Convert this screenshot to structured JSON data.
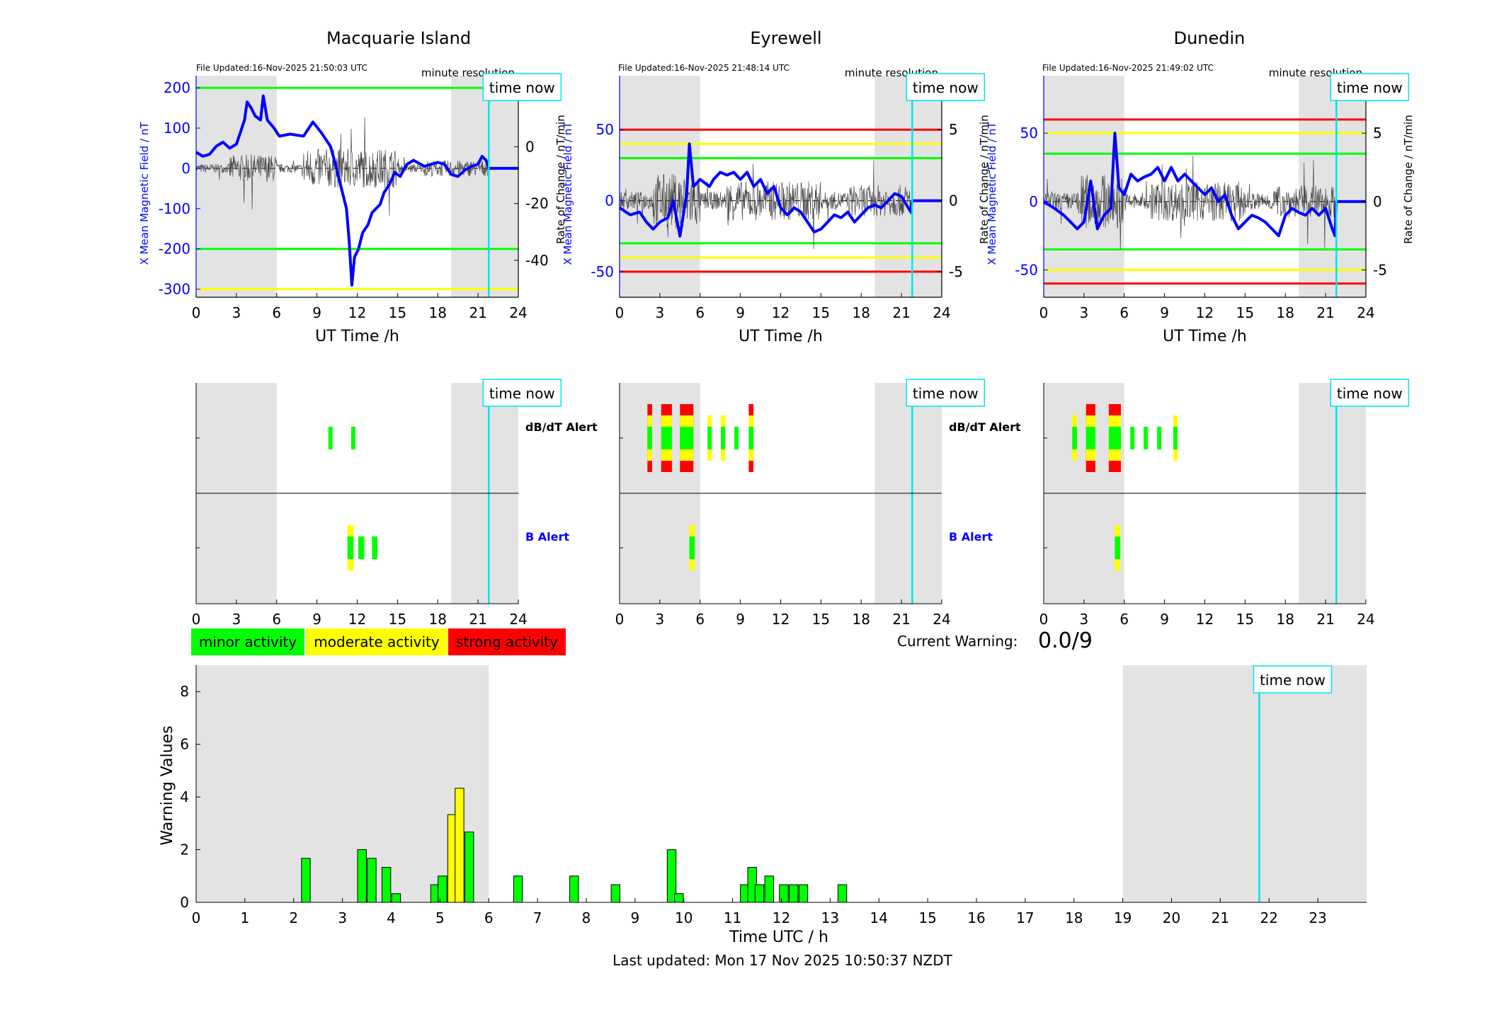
{
  "colors": {
    "shade": "#e3e3e3",
    "cyan": "#00e5ee",
    "blue": "#0000ff",
    "green": "#00ff00",
    "yellow": "#ffff00",
    "red": "#ff0000",
    "trace": "#444444",
    "bar_edge": "#000000"
  },
  "time_now_label": "time now",
  "minute_label": "minute resolution",
  "field_ylabel": "X Mean Magnetic Field / nT",
  "rate_ylabel": "Rate of Change / nT/min",
  "ut_xlabel": "UT Time /h",
  "dbdt_label": "dB/dT Alert",
  "b_label": "B Alert",
  "legend": [
    {
      "label": "minor activity",
      "color": "#00ff00"
    },
    {
      "label": "moderate activity",
      "color": "#ffff00"
    },
    {
      "label": "strong activity",
      "color": "#ff0000"
    }
  ],
  "current_warning": {
    "label": "Current Warning:",
    "value": "0.0/9"
  },
  "last_updated": "Last updated: Mon 17 Nov 2025 10:50:37 NZDT",
  "stations": [
    {
      "name": "Macquarie Island",
      "file_updated": "File Updated:16-Nov-2025 21:50:03 UTC",
      "show_minute": true,
      "ylim": [
        -320,
        230
      ],
      "yticks": [
        -300,
        -200,
        -100,
        0,
        100,
        200
      ],
      "rlim": [
        -53,
        25
      ],
      "rticks": [
        -40,
        -20,
        0,
        20
      ],
      "green_lines": [
        200,
        -200
      ],
      "yellow_lines": [
        -300
      ],
      "red_lines": [],
      "trace_scale": 14,
      "trace_t1": 21.7,
      "field_series": [
        [
          0,
          40
        ],
        [
          0.5,
          30
        ],
        [
          1,
          35
        ],
        [
          1.5,
          55
        ],
        [
          2,
          65
        ],
        [
          2.5,
          50
        ],
        [
          3,
          60
        ],
        [
          3.3,
          90
        ],
        [
          3.6,
          120
        ],
        [
          3.8,
          165
        ],
        [
          4.1,
          150
        ],
        [
          4.4,
          130
        ],
        [
          4.8,
          120
        ],
        [
          5.0,
          180
        ],
        [
          5.3,
          120
        ],
        [
          5.8,
          100
        ],
        [
          6.2,
          80
        ],
        [
          7,
          85
        ],
        [
          8,
          80
        ],
        [
          8.7,
          115
        ],
        [
          9.3,
          90
        ],
        [
          10,
          55
        ],
        [
          10.3,
          20
        ],
        [
          10.6,
          -20
        ],
        [
          10.9,
          -60
        ],
        [
          11.2,
          -100
        ],
        [
          11.4,
          -180
        ],
        [
          11.6,
          -290
        ],
        [
          11.8,
          -220
        ],
        [
          12.1,
          -200
        ],
        [
          12.4,
          -160
        ],
        [
          12.8,
          -140
        ],
        [
          13.1,
          -110
        ],
        [
          13.4,
          -100
        ],
        [
          13.7,
          -90
        ],
        [
          14,
          -60
        ],
        [
          14.4,
          -40
        ],
        [
          14.8,
          -10
        ],
        [
          15.2,
          -20
        ],
        [
          15.7,
          10
        ],
        [
          16.2,
          20
        ],
        [
          17,
          5
        ],
        [
          17.5,
          10
        ],
        [
          18,
          15
        ],
        [
          18.5,
          10
        ],
        [
          19,
          -15
        ],
        [
          19.5,
          -20
        ],
        [
          20,
          -5
        ],
        [
          20.5,
          5
        ],
        [
          21,
          10
        ],
        [
          21.3,
          30
        ],
        [
          21.6,
          20
        ],
        [
          21.8,
          0
        ],
        [
          24,
          0
        ]
      ],
      "dbdt_alerts": [
        {
          "t": 10.0,
          "w": 0.3,
          "level": 1
        },
        {
          "t": 11.7,
          "w": 0.3,
          "level": 1
        }
      ],
      "b_alerts": [
        {
          "t": 11.5,
          "w": 0.45,
          "level": 2
        },
        {
          "t": 12.3,
          "w": 0.45,
          "level": 1
        },
        {
          "t": 13.3,
          "w": 0.4,
          "level": 1
        }
      ]
    },
    {
      "name": "Eyrewell",
      "file_updated": "File Updated:16-Nov-2025 21:48:14 UTC",
      "show_minute": true,
      "ylim": [
        -68,
        88
      ],
      "yticks": [
        -50,
        0,
        50
      ],
      "rlim": [
        -6.8,
        8.8
      ],
      "rticks": [
        -5,
        0,
        5
      ],
      "green_lines": [
        30,
        -30
      ],
      "yellow_lines": [
        40,
        -40
      ],
      "red_lines": [
        50,
        -50
      ],
      "trace_scale": 28,
      "trace_t1": 21.7,
      "field_series": [
        [
          0,
          -5
        ],
        [
          0.8,
          -10
        ],
        [
          1.5,
          -8
        ],
        [
          2,
          -15
        ],
        [
          2.5,
          -20
        ],
        [
          3,
          -15
        ],
        [
          3.6,
          -12
        ],
        [
          4,
          0
        ],
        [
          4.5,
          -25
        ],
        [
          5.0,
          5
        ],
        [
          5.2,
          40
        ],
        [
          5.5,
          10
        ],
        [
          6,
          15
        ],
        [
          6.7,
          10
        ],
        [
          7,
          15
        ],
        [
          7.5,
          20
        ],
        [
          8,
          18
        ],
        [
          8.5,
          20
        ],
        [
          9,
          15
        ],
        [
          9.5,
          20
        ],
        [
          10,
          10
        ],
        [
          10.5,
          15
        ],
        [
          11,
          5
        ],
        [
          11.5,
          10
        ],
        [
          12,
          -5
        ],
        [
          12.5,
          -10
        ],
        [
          13,
          -5
        ],
        [
          13.5,
          -8
        ],
        [
          14,
          -15
        ],
        [
          14.5,
          -22
        ],
        [
          15,
          -20
        ],
        [
          15.5,
          -15
        ],
        [
          16,
          -10
        ],
        [
          16.5,
          -12
        ],
        [
          17,
          -8
        ],
        [
          17.5,
          -15
        ],
        [
          18,
          -10
        ],
        [
          18.5,
          -5
        ],
        [
          19,
          -3
        ],
        [
          19.5,
          -5
        ],
        [
          20,
          0
        ],
        [
          20.5,
          5
        ],
        [
          21,
          3
        ],
        [
          21.5,
          -5
        ],
        [
          21.7,
          -8
        ],
        [
          21.8,
          0
        ],
        [
          24,
          0
        ]
      ],
      "dbdt_alerts": [
        {
          "t": 2.25,
          "w": 0.35,
          "level": 3
        },
        {
          "t": 3.5,
          "w": 0.8,
          "level": 3
        },
        {
          "t": 5.0,
          "w": 1.0,
          "level": 3
        },
        {
          "t": 6.7,
          "w": 0.3,
          "level": 2
        },
        {
          "t": 7.7,
          "w": 0.3,
          "level": 2
        },
        {
          "t": 8.7,
          "w": 0.3,
          "level": 1
        },
        {
          "t": 9.8,
          "w": 0.35,
          "level": 3
        }
      ],
      "b_alerts": [
        {
          "t": 5.4,
          "w": 0.4,
          "level": 2
        }
      ]
    },
    {
      "name": "Dunedin",
      "file_updated": "File Updated:16-Nov-2025 21:49:02 UTC",
      "show_minute": true,
      "ylim": [
        -70,
        92
      ],
      "yticks": [
        -50,
        0,
        50
      ],
      "rlim": [
        -7,
        9.2
      ],
      "rticks": [
        -5,
        0,
        5
      ],
      "green_lines": [
        35,
        -35
      ],
      "yellow_lines": [
        50,
        -50
      ],
      "red_lines": [
        60,
        -60
      ],
      "trace_scale": 28,
      "trace_t1": 21.7,
      "field_series": [
        [
          0,
          0
        ],
        [
          0.8,
          -5
        ],
        [
          1.5,
          -10
        ],
        [
          2,
          -15
        ],
        [
          2.5,
          -20
        ],
        [
          3,
          -15
        ],
        [
          3.5,
          15
        ],
        [
          4,
          -20
        ],
        [
          4.5,
          -10
        ],
        [
          5.0,
          -5
        ],
        [
          5.3,
          50
        ],
        [
          5.6,
          10
        ],
        [
          6,
          5
        ],
        [
          6.5,
          20
        ],
        [
          7,
          15
        ],
        [
          7.5,
          18
        ],
        [
          8,
          20
        ],
        [
          8.5,
          25
        ],
        [
          9,
          15
        ],
        [
          9.5,
          25
        ],
        [
          10,
          15
        ],
        [
          10.5,
          20
        ],
        [
          11,
          15
        ],
        [
          11.5,
          10
        ],
        [
          12,
          5
        ],
        [
          12.5,
          10
        ],
        [
          13,
          0
        ],
        [
          13.5,
          5
        ],
        [
          14,
          -10
        ],
        [
          14.5,
          -20
        ],
        [
          15,
          -15
        ],
        [
          15.5,
          -10
        ],
        [
          16,
          -12
        ],
        [
          16.5,
          -15
        ],
        [
          17,
          -20
        ],
        [
          17.5,
          -25
        ],
        [
          18,
          -10
        ],
        [
          18.5,
          -5
        ],
        [
          19,
          -8
        ],
        [
          19.5,
          -10
        ],
        [
          20,
          -5
        ],
        [
          20.5,
          -10
        ],
        [
          21,
          -5
        ],
        [
          21.5,
          -20
        ],
        [
          21.7,
          -25
        ],
        [
          21.8,
          0
        ],
        [
          24,
          0
        ]
      ],
      "dbdt_alerts": [
        {
          "t": 2.3,
          "w": 0.35,
          "level": 2
        },
        {
          "t": 3.5,
          "w": 0.7,
          "level": 3
        },
        {
          "t": 5.3,
          "w": 0.9,
          "level": 3
        },
        {
          "t": 6.6,
          "w": 0.3,
          "level": 1
        },
        {
          "t": 7.6,
          "w": 0.3,
          "level": 1
        },
        {
          "t": 8.6,
          "w": 0.3,
          "level": 1
        },
        {
          "t": 9.8,
          "w": 0.3,
          "level": 2
        }
      ],
      "b_alerts": [
        {
          "t": 5.5,
          "w": 0.4,
          "level": 2
        }
      ]
    }
  ],
  "shade_intervals_h": [
    [
      0,
      6
    ],
    [
      19,
      24
    ]
  ],
  "time_now_h": 21.8,
  "upper_xticks": [
    0,
    3,
    6,
    9,
    12,
    15,
    18,
    21,
    24
  ],
  "chart_data": {
    "type": "bar",
    "title": "",
    "xlabel": "Time UTC / h",
    "ylabel": "Warning Values",
    "xlim": [
      0,
      24
    ],
    "ylim": [
      0,
      9
    ],
    "xticks": [
      0,
      1,
      2,
      3,
      4,
      5,
      6,
      7,
      8,
      9,
      10,
      11,
      12,
      13,
      14,
      15,
      16,
      17,
      18,
      19,
      20,
      21,
      22,
      23
    ],
    "yticks": [
      0,
      2,
      4,
      6,
      8
    ],
    "shade_intervals": [
      [
        0,
        6
      ],
      [
        19,
        24
      ]
    ],
    "time_now": 21.8,
    "bar_width": 0.18,
    "bars": [
      {
        "x": 2.25,
        "value": 1.67,
        "level": 1
      },
      {
        "x": 3.4,
        "value": 2.0,
        "level": 1
      },
      {
        "x": 3.6,
        "value": 1.67,
        "level": 1
      },
      {
        "x": 3.9,
        "value": 1.33,
        "level": 1
      },
      {
        "x": 4.1,
        "value": 0.33,
        "level": 1
      },
      {
        "x": 4.9,
        "value": 0.67,
        "level": 1
      },
      {
        "x": 5.05,
        "value": 1.0,
        "level": 1
      },
      {
        "x": 5.25,
        "value": 3.33,
        "level": 2
      },
      {
        "x": 5.4,
        "value": 4.33,
        "level": 2
      },
      {
        "x": 5.6,
        "value": 2.67,
        "level": 1
      },
      {
        "x": 6.6,
        "value": 1.0,
        "level": 1
      },
      {
        "x": 7.75,
        "value": 1.0,
        "level": 1
      },
      {
        "x": 8.6,
        "value": 0.67,
        "level": 1
      },
      {
        "x": 9.75,
        "value": 2.0,
        "level": 1
      },
      {
        "x": 9.9,
        "value": 0.33,
        "level": 1
      },
      {
        "x": 11.25,
        "value": 0.67,
        "level": 1
      },
      {
        "x": 11.4,
        "value": 1.33,
        "level": 1
      },
      {
        "x": 11.55,
        "value": 0.67,
        "level": 1
      },
      {
        "x": 11.75,
        "value": 1.0,
        "level": 1
      },
      {
        "x": 12.05,
        "value": 0.67,
        "level": 1
      },
      {
        "x": 12.25,
        "value": 0.67,
        "level": 1
      },
      {
        "x": 12.45,
        "value": 0.67,
        "level": 1
      },
      {
        "x": 13.25,
        "value": 0.67,
        "level": 1
      }
    ]
  }
}
